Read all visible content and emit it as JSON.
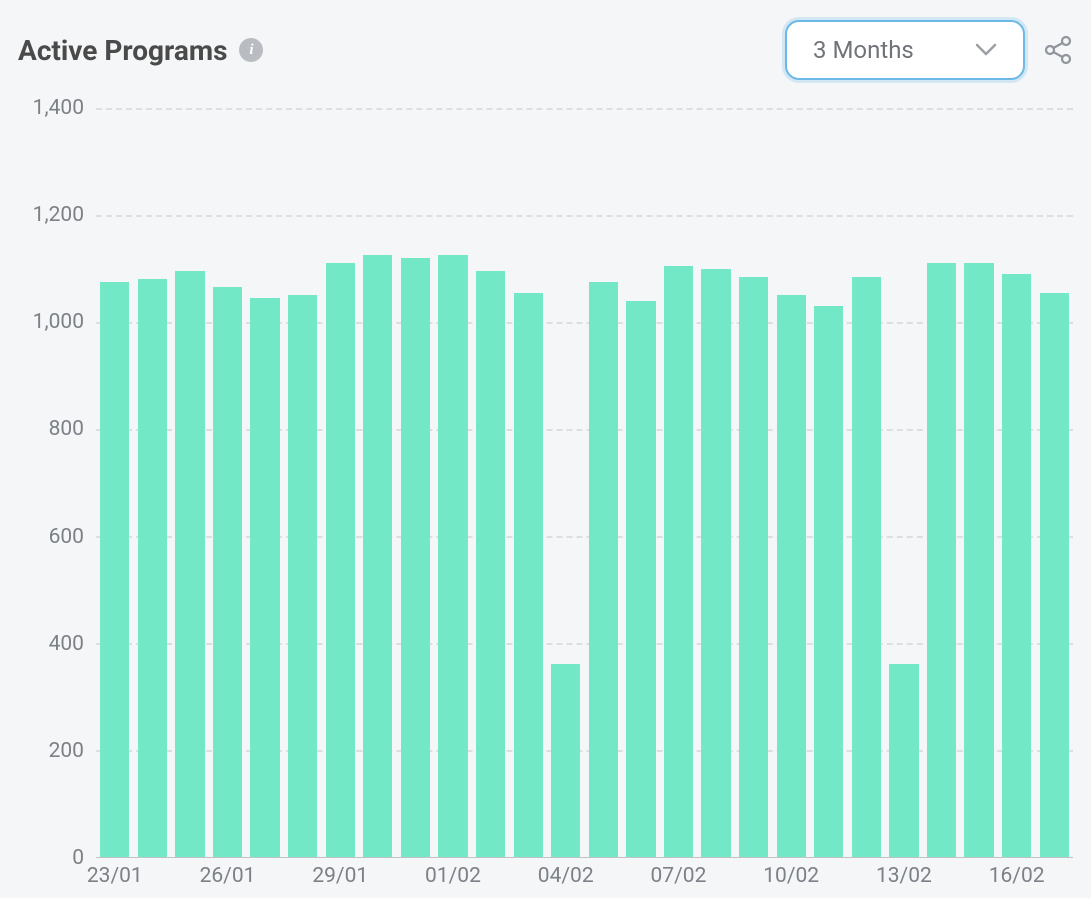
{
  "header": {
    "title": "Active Programs",
    "info_tooltip": "i",
    "dropdown": {
      "selected_label": "3 Months"
    }
  },
  "chart": {
    "type": "bar",
    "bar_color": "#73e8c7",
    "background_color": "#f5f6f7",
    "grid_color": "#dcdee1",
    "axis_label_color": "#7c8087",
    "axis_label_fontsize": 21,
    "ylim": [
      0,
      1400
    ],
    "ytick_step": 200,
    "yticks": [
      {
        "value": 0,
        "label": "0"
      },
      {
        "value": 200,
        "label": "200"
      },
      {
        "value": 400,
        "label": "400"
      },
      {
        "value": 600,
        "label": "600"
      },
      {
        "value": 800,
        "label": "800"
      },
      {
        "value": 1000,
        "label": "1,000"
      },
      {
        "value": 1200,
        "label": "1,200"
      },
      {
        "value": 1400,
        "label": "1,400"
      }
    ],
    "bar_width_ratio": 0.78,
    "categories": [
      "23/01",
      "24/01",
      "25/01",
      "26/01",
      "27/01",
      "28/01",
      "29/01",
      "30/01",
      "31/01",
      "01/02",
      "02/02",
      "03/02",
      "04/02",
      "05/02",
      "06/02",
      "07/02",
      "08/02",
      "09/02",
      "10/02",
      "11/02",
      "12/02",
      "13/02",
      "14/02",
      "15/02",
      "16/02",
      "17/02"
    ],
    "values": [
      1075,
      1080,
      1095,
      1065,
      1045,
      1050,
      1110,
      1125,
      1120,
      1125,
      1095,
      1055,
      360,
      1075,
      1040,
      1105,
      1100,
      1085,
      1050,
      1030,
      1085,
      360,
      1110,
      1110,
      1090,
      1055
    ],
    "xtick_interval": 3,
    "xtick_start_index": 0,
    "xtick_labels": [
      "23/01",
      "26/01",
      "29/01",
      "01/02",
      "04/02",
      "07/02",
      "10/02",
      "13/02",
      "16/02"
    ]
  }
}
